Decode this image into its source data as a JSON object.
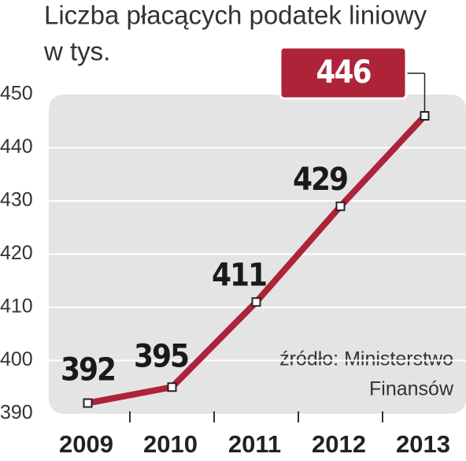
{
  "chart_data": {
    "type": "line",
    "title": [
      "Liczba płacących podatek liniowy",
      "w tys."
    ],
    "categories": [
      "2009",
      "2010",
      "2011",
      "2012",
      "2013"
    ],
    "series": [
      {
        "name": "Liczba płacących podatek liniowy",
        "color": "#ad2338",
        "values": [
          392,
          395,
          411,
          429,
          446
        ]
      }
    ],
    "ylim": [
      390,
      450
    ],
    "yticks": [
      390,
      400,
      410,
      420,
      430,
      440,
      450
    ],
    "grid": true,
    "source": [
      "źródło: Ministerstwo",
      "Finansów"
    ]
  }
}
